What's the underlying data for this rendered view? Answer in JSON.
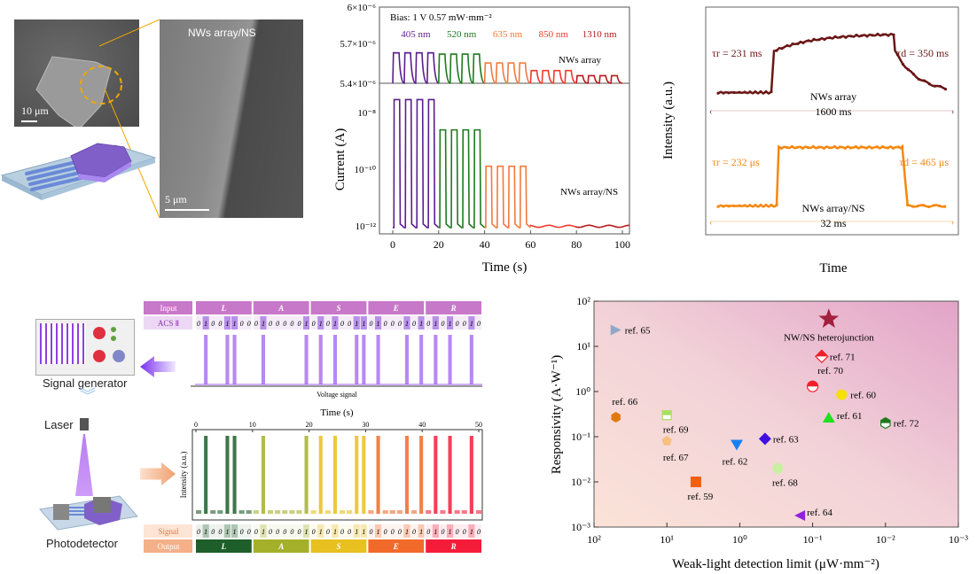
{
  "panel_a": {
    "sem_overview_scale": "10 μm",
    "sem_zoom_label": "NWs array/NS",
    "sem_zoom_scale": "5 μm",
    "accent_dashed_circle": "#f0a800"
  },
  "chart_data": [
    {
      "id": "current-time",
      "type": "line",
      "title": "",
      "xlabel": "Time (s)",
      "ylabel": "Current (A)",
      "xlim": [
        0,
        100
      ],
      "xticks": [
        "0",
        "20",
        "40",
        "60",
        "80",
        "100"
      ],
      "annotation_bias": "Bias: 1 V   0.57 mW·mm⁻²",
      "top": {
        "label": "NWs array",
        "ylim": [
          5.4e-06,
          6e-06
        ],
        "yticks": [
          "6×10⁻⁶",
          "5.7×10⁻⁶",
          "5.4×10⁻⁶"
        ],
        "series": [
          {
            "name": "405 nm",
            "color": "#5b1d8f",
            "x_range": [
              0,
              20
            ],
            "on_current": 5.64e-06,
            "off_current": 5.4e-06
          },
          {
            "name": "520 nm",
            "color": "#1e7a1e",
            "x_range": [
              20,
              40
            ],
            "on_current": 5.63e-06,
            "off_current": 5.4e-06
          },
          {
            "name": "635 nm",
            "color": "#f07a3c",
            "x_range": [
              40,
              60
            ],
            "on_current": 5.56e-06,
            "off_current": 5.4e-06
          },
          {
            "name": "850 nm",
            "color": "#f03a2a",
            "x_range": [
              60,
              80
            ],
            "on_current": 5.5e-06,
            "off_current": 5.4e-06
          },
          {
            "name": "1310 nm",
            "color": "#b81a1a",
            "x_range": [
              80,
              100
            ],
            "on_current": 5.46e-06,
            "off_current": 5.4e-06
          }
        ]
      },
      "bottom": {
        "label": "NWs array/NS",
        "ylim_log": [
          -12.2,
          -7.4
        ],
        "yticks": [
          "10⁻⁸",
          "10⁻¹⁰",
          "10⁻¹²"
        ],
        "series": [
          {
            "name": "405 nm",
            "color": "#5b1d8f",
            "x_range": [
              0,
              20
            ],
            "on_current": 1.2e-08,
            "off_current": 1e-12
          },
          {
            "name": "520 nm",
            "color": "#1e7a1e",
            "x_range": [
              20,
              40
            ],
            "on_current": 1.3e-09,
            "off_current": 1e-12
          },
          {
            "name": "635 nm",
            "color": "#f07a3c",
            "x_range": [
              40,
              60
            ],
            "on_current": 9e-11,
            "off_current": 1e-12
          },
          {
            "name": "850 nm",
            "color": "#f03a2a",
            "x_range": [
              60,
              80
            ],
            "on_current": 1.1e-12,
            "off_current": 1.1e-12
          },
          {
            "name": "1310 nm",
            "color": "#b81a1a",
            "x_range": [
              80,
              103
            ],
            "on_current": 1.1e-12,
            "off_current": 1.1e-12
          }
        ]
      }
    },
    {
      "id": "response-time",
      "type": "line",
      "xlabel": "Time",
      "ylabel": "Intensity (a.u.)",
      "series": [
        {
          "name": "NWs array",
          "color": "#6b1616",
          "rise": "τr = 231 ms",
          "decay": "τd = 350 ms",
          "span": "1600 ms",
          "profile": {
            "off": 0.05,
            "on_start": 0.72,
            "on_end": 1.0,
            "rise_at": 0.26,
            "fall_at": 0.76
          }
        },
        {
          "name": "NWs array/NS",
          "color": "#f5870f",
          "rise": "τr = 232 μs",
          "decay": "τd = 465 μs",
          "span": "32 ms",
          "profile": {
            "off": 0.05,
            "on_start": 0.98,
            "on_end": 1.0,
            "rise_at": 0.28,
            "fall_at": 0.79
          }
        }
      ]
    },
    {
      "id": "ascii-encoding",
      "type": "bar",
      "xlabel": "Time (s)",
      "xlim": [
        0,
        50
      ],
      "xticks": [
        "0",
        "10",
        "20",
        "30",
        "40",
        "50"
      ],
      "voltage_label": "Voltage signal",
      "intensity_label": "Intensity (a.u.)",
      "input_label": "Input",
      "acs_label": "ACS Ⅱ",
      "signal_label": "Signal",
      "output_label": "Output",
      "letters": [
        {
          "char": "L",
          "bits": "01001100",
          "color": "#1e5e2a"
        },
        {
          "char": "A",
          "bits": "01000001",
          "color": "#a5b02a"
        },
        {
          "char": "S",
          "bits": "01010011",
          "color": "#e8c020"
        },
        {
          "char": "E",
          "bits": "01000101",
          "color": "#f26a2a"
        },
        {
          "char": "R",
          "bits": "01010010",
          "color": "#f51c3a"
        }
      ]
    },
    {
      "id": "benchmark",
      "type": "scatter",
      "xlabel": "Weak-light detection limit (μW·mm⁻²)",
      "ylabel": "Responsivity (A·W⁻¹)",
      "xlim_log": [
        2,
        -3
      ],
      "ylim_log": [
        -3,
        2
      ],
      "xticks": [
        "10²",
        "10¹",
        "10⁰",
        "10⁻¹",
        "10⁻²",
        "10⁻³"
      ],
      "yticks": [
        "10⁻³",
        "10⁻²",
        "10⁻¹",
        "10⁰",
        "10¹",
        "10²"
      ],
      "points": [
        {
          "label": "NW/NS heterojunction",
          "x": 0.06,
          "y": 40,
          "shape": "star",
          "color": "#a3203f"
        },
        {
          "label": "ref. 65",
          "x": 50,
          "y": 23,
          "shape": "triangle-right",
          "color": "#8fa8c8"
        },
        {
          "label": "ref. 71",
          "x": 0.075,
          "y": 6,
          "shape": "diamond-half",
          "color": "#f0202a"
        },
        {
          "label": "ref. 70",
          "x": 0.1,
          "y": 1.3,
          "shape": "circle-half",
          "color": "#f0202a"
        },
        {
          "label": "ref. 60",
          "x": 0.04,
          "y": 0.85,
          "shape": "circle",
          "color": "#f5e000"
        },
        {
          "label": "ref. 61",
          "x": 0.06,
          "y": 0.27,
          "shape": "triangle-up",
          "color": "#20e020"
        },
        {
          "label": "ref. 72",
          "x": 0.01,
          "y": 0.2,
          "shape": "hexagon-half",
          "color": "#1e7a1e"
        },
        {
          "label": "ref. 66",
          "x": 50,
          "y": 0.27,
          "shape": "hexagon",
          "color": "#e07a10"
        },
        {
          "label": "ref. 69",
          "x": 10,
          "y": 0.3,
          "shape": "square-half",
          "color": "#a8e060"
        },
        {
          "label": "ref. 67",
          "x": 10,
          "y": 0.08,
          "shape": "pentagon",
          "color": "#f5c080"
        },
        {
          "label": "ref. 62",
          "x": 1.1,
          "y": 0.065,
          "shape": "triangle-down",
          "color": "#1a80f0"
        },
        {
          "label": "ref. 63",
          "x": 0.45,
          "y": 0.09,
          "shape": "diamond",
          "color": "#4010e0"
        },
        {
          "label": "ref. 68",
          "x": 0.3,
          "y": 0.02,
          "shape": "circle",
          "color": "#c8f0a0"
        },
        {
          "label": "ref. 59",
          "x": 4,
          "y": 0.01,
          "shape": "square",
          "color": "#f06010"
        },
        {
          "label": "ref. 64",
          "x": 0.15,
          "y": 0.0018,
          "shape": "triangle-left",
          "color": "#9020e0"
        }
      ]
    }
  ],
  "schematic": {
    "signal_generator": "Signal generator",
    "laser": "Laser",
    "photodetector": "Photodetector"
  }
}
